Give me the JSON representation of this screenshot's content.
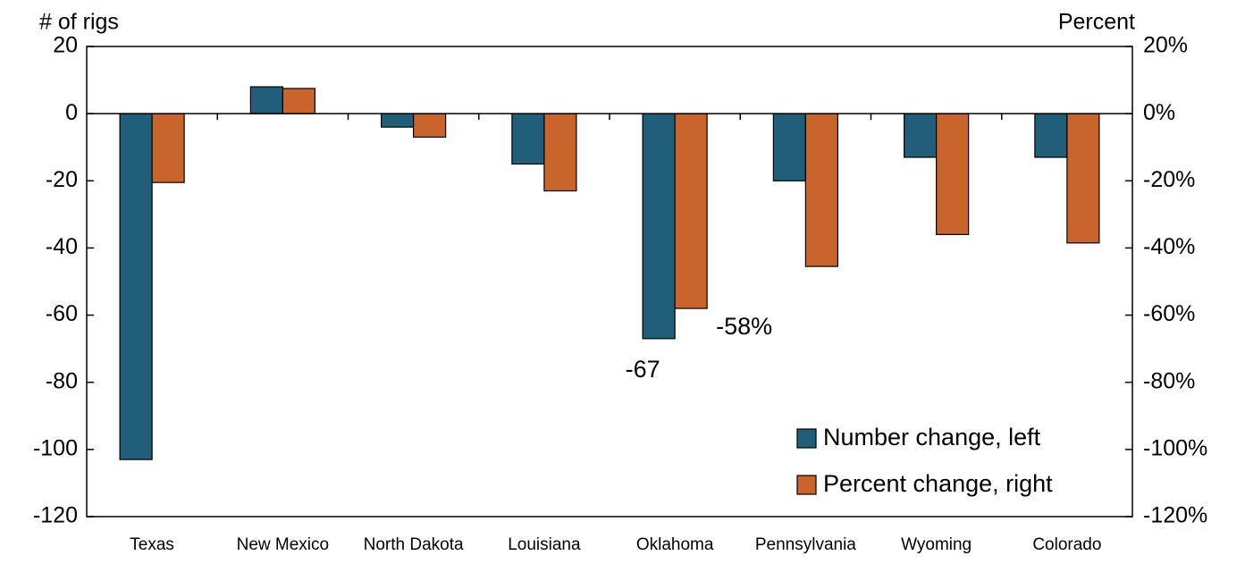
{
  "chart_data": {
    "type": "bar",
    "y_label": "# of rigs",
    "y2_label": "Percent",
    "categories": [
      "Texas",
      "New Mexico",
      "North Dakota",
      "Louisiana",
      "Oklahoma",
      "Pennsylvania",
      "Wyoming",
      "Colorado"
    ],
    "series": [
      {
        "name": "Number change, left",
        "color": "#215e7a",
        "values": [
          -103,
          8,
          -4,
          -15,
          -67,
          -20,
          -13,
          -13
        ],
        "value_labels": [
          null,
          null,
          null,
          null,
          "-67",
          null,
          null,
          null
        ]
      },
      {
        "name": "Percent change, right",
        "color": "#c8642c",
        "axis": "y2",
        "values": [
          -20.5,
          7.5,
          -7,
          -23,
          -58,
          -45.5,
          -36,
          -38.5
        ],
        "value_labels": [
          null,
          null,
          null,
          null,
          "-58%",
          null,
          null,
          null
        ]
      }
    ],
    "ylim": [
      -120,
      20
    ],
    "yticks": [
      -120,
      -100,
      -80,
      -60,
      -40,
      -20,
      0,
      20
    ],
    "y2lim": [
      -120,
      20
    ],
    "y2ticks": [
      {
        "value": -120,
        "label": "-120%"
      },
      {
        "value": -100,
        "label": "-100%"
      },
      {
        "value": -80,
        "label": "-80%"
      },
      {
        "value": -60,
        "label": "-60%"
      },
      {
        "value": -40,
        "label": "-40%"
      },
      {
        "value": -20,
        "label": "-20%"
      },
      {
        "value": 0,
        "label": "0%"
      },
      {
        "value": 20,
        "label": "20%"
      }
    ],
    "legend": "lower right"
  }
}
